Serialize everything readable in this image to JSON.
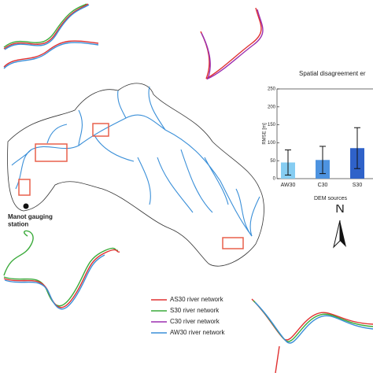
{
  "chart_data": {
    "type": "bar",
    "title": "Spatial disagreement er",
    "y_label": "RMSE [m]",
    "x_label": "DEM sources",
    "categories": [
      "AW30",
      "C30",
      "S30"
    ],
    "values": [
      45,
      52,
      85
    ],
    "errors": [
      35,
      38,
      57
    ],
    "colors": [
      "#86cdf2",
      "#4d93e0",
      "#2f62c9"
    ],
    "ylim": [
      0,
      250
    ],
    "yticks": [
      0,
      50,
      100,
      150,
      200,
      250
    ]
  },
  "map": {
    "station_label": "Manot gauging\nstation",
    "north_label": "N",
    "legend": [
      {
        "name": "AS30 river network",
        "color": "#e03030"
      },
      {
        "name": "S30 river network",
        "color": "#3aaa3a"
      },
      {
        "name": "C30 river network",
        "color": "#9b2fb0"
      },
      {
        "name": "AW30 river network",
        "color": "#3a8fd8"
      }
    ]
  }
}
